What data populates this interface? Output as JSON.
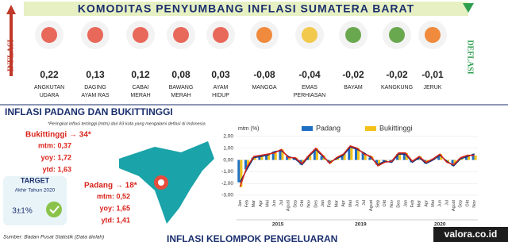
{
  "header": {
    "title": "KOMODITAS PENYUMBANG INFLASI SUMATERA BARAT",
    "left_label": "INFLASI",
    "right_label": "DEFLASI"
  },
  "inflation": [
    {
      "value": "0,22",
      "label": [
        "ANGKUTAN",
        "UDARA"
      ],
      "color": "#e8685a"
    },
    {
      "value": "0,13",
      "label": [
        "DAGING",
        "AYAM RAS"
      ],
      "color": "#e8685a"
    },
    {
      "value": "0,12",
      "label": [
        "CABAI",
        "MERAH"
      ],
      "color": "#e8685a"
    },
    {
      "value": "0,08",
      "label": [
        "BAWANG",
        "MERAH"
      ],
      "color": "#e8685a"
    },
    {
      "value": "0,03",
      "label": [
        "AYAM",
        "HIDUP"
      ],
      "color": "#e8685a"
    }
  ],
  "deflation": [
    {
      "value": "-0,08",
      "label": [
        "MANGGA"
      ],
      "color": "#f08a3c"
    },
    {
      "value": "-0,04",
      "label": [
        "EMAS",
        "PERHIASAN"
      ],
      "color": "#f2c94c"
    },
    {
      "value": "-0,02",
      "label": [
        "BAYAM"
      ],
      "color": "#6aa84f"
    },
    {
      "value": "-0,02",
      "label": [
        "KANGKUNG"
      ],
      "color": "#6aa84f"
    },
    {
      "value": "-0,01",
      "label": [
        "JERUK"
      ],
      "color": "#f08a3c"
    }
  ],
  "section": {
    "title": "INFLASI PADANG DAN BUKITTINGGI",
    "note": "*Peringkat inflasi tertinggi (mtm) dari 83 kota yang mengalami deflasi di Indonesia"
  },
  "cities": [
    {
      "name": "Bukittinggi → 34*",
      "stats": [
        "mtm: 0,37",
        "yoy: 1,72",
        "ytd: 1,63"
      ]
    },
    {
      "name": "Padang → 18*",
      "stats": [
        "mtm: 0,52",
        "yoy: 1,65",
        "ytd: 1,41"
      ]
    }
  ],
  "target": {
    "title": "TARGET",
    "subtitle": "Akhir Tahun 2020",
    "value": "3±1%"
  },
  "chart": {
    "type": "bar",
    "y_label": "mtm (%)",
    "ylim": [
      -3,
      2
    ],
    "yticks": [
      {
        "value": 2,
        "label": "2,00"
      },
      {
        "value": 1,
        "label": "1,00"
      },
      {
        "value": 0,
        "label": "0,00"
      },
      {
        "value": -1,
        "label": "-1,00"
      },
      {
        "value": -2,
        "label": "-2,00"
      },
      {
        "value": -3,
        "label": "-3,00"
      }
    ],
    "categories": [
      "Jan",
      "Feb",
      "Mar",
      "Apr",
      "Mei",
      "Jun",
      "Jul",
      "Agust",
      "Sep",
      "Okt",
      "Nov",
      "Des",
      "Jan",
      "Feb",
      "Mar",
      "Apr",
      "Mei",
      "Jun",
      "Jul",
      "Agust",
      "Sep",
      "Okt",
      "Nov",
      "Des",
      "Jan",
      "Feb",
      "Mar",
      "Apr",
      "Mei",
      "Jun",
      "Jul",
      "Agust",
      "Sep",
      "Okt",
      "Nov"
    ],
    "years": [
      "2015",
      "2019",
      "2020"
    ],
    "series": [
      {
        "name": "Padang",
        "color": "#1f6fc5",
        "line_color": "#1b2f6e",
        "values": [
          -1.9,
          -0.8,
          0.2,
          0.3,
          0.4,
          0.7,
          0.8,
          0.3,
          0.1,
          -0.4,
          0.3,
          0.9,
          0.3,
          -0.2,
          0.1,
          0.4,
          1.1,
          0.9,
          0.6,
          0.2,
          -0.4,
          -0.1,
          -0.2,
          0.5,
          0.5,
          -0.2,
          0.2,
          -0.3,
          0.0,
          0.4,
          -0.1,
          -0.5,
          0.1,
          0.3,
          0.52
        ]
      },
      {
        "name": "Bukittinggi",
        "color": "#f2c21b",
        "line_color": "#d9251d",
        "values": [
          -2.3,
          -0.6,
          0.3,
          0.4,
          0.5,
          0.6,
          0.9,
          0.2,
          0.2,
          -0.3,
          0.4,
          1.0,
          0.4,
          -0.3,
          0.2,
          0.5,
          1.2,
          1.0,
          0.5,
          0.3,
          -0.5,
          -0.2,
          -0.1,
          0.6,
          0.6,
          -0.1,
          0.3,
          -0.2,
          0.1,
          0.5,
          -0.2,
          -0.4,
          0.2,
          0.4,
          0.37
        ]
      }
    ]
  },
  "footer": {
    "source": "Sumber: Badan Pusat Statistik (Data diolah)",
    "next_title": "INFLASI KELOMPOK PENGELUARAN",
    "watermark": "valora.co.id"
  }
}
